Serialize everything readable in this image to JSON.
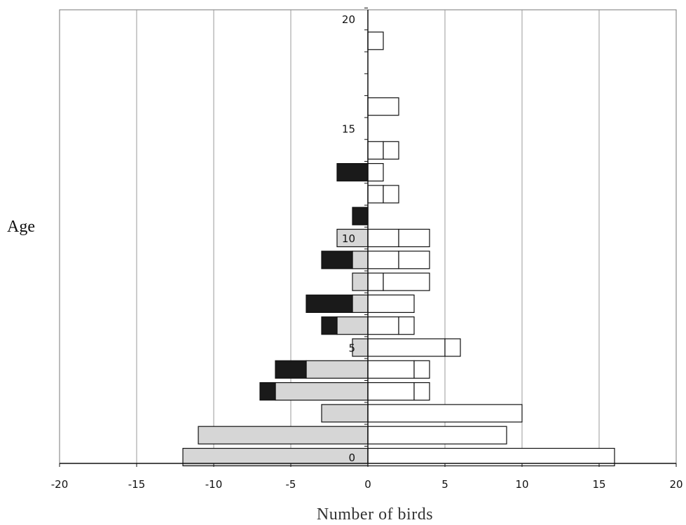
{
  "chart_data": {
    "type": "bar",
    "orientation": "horizontal",
    "layout": "population-pyramid",
    "xlabel": "Number of birds",
    "ylabel": "Age",
    "xlim": [
      -20,
      20
    ],
    "x_ticks": [
      "-20",
      "-15",
      "-10",
      "-5",
      "0",
      "5",
      "10",
      "15",
      "20"
    ],
    "ylim": [
      0,
      20
    ],
    "y_ticks": [
      "0",
      "5",
      "10",
      "15",
      "20"
    ],
    "grid": "vertical",
    "categories": [
      0,
      1,
      2,
      3,
      4,
      5,
      6,
      7,
      8,
      9,
      10,
      11,
      12,
      13,
      14,
      15,
      16,
      17,
      18,
      19,
      20
    ],
    "series": [
      {
        "side": "left",
        "fill": "#d6d6d6",
        "values": [
          -12,
          -11,
          -3,
          -6,
          -4,
          -1,
          -2,
          -1,
          -1,
          -1,
          -2,
          0,
          0,
          0,
          0,
          0,
          0,
          0,
          0,
          0,
          0
        ]
      },
      {
        "side": "left",
        "fill": "#1a1a1a",
        "values": [
          0,
          0,
          0,
          -1,
          -2,
          0,
          -1,
          -3,
          0,
          -2,
          0,
          -1,
          0,
          -2,
          0,
          0,
          0,
          0,
          0,
          0,
          0
        ]
      },
      {
        "side": "right",
        "fill": "#ffffff",
        "values": [
          16,
          9,
          10,
          3,
          3,
          5,
          2,
          3,
          1,
          2,
          2,
          0,
          1,
          0,
          1,
          0,
          2,
          0,
          0,
          1,
          0
        ]
      },
      {
        "side": "right",
        "fill": "#ffffff",
        "values": [
          0,
          0,
          0,
          1,
          1,
          1,
          1,
          0,
          3,
          2,
          2,
          0,
          1,
          1,
          1,
          0,
          0,
          0,
          0,
          0,
          0
        ]
      }
    ],
    "colors": {
      "light": "#d6d6d6",
      "dark": "#1a1a1a",
      "open": "#ffffff",
      "outline": "#111111",
      "grid": "#9a9a9a"
    }
  }
}
